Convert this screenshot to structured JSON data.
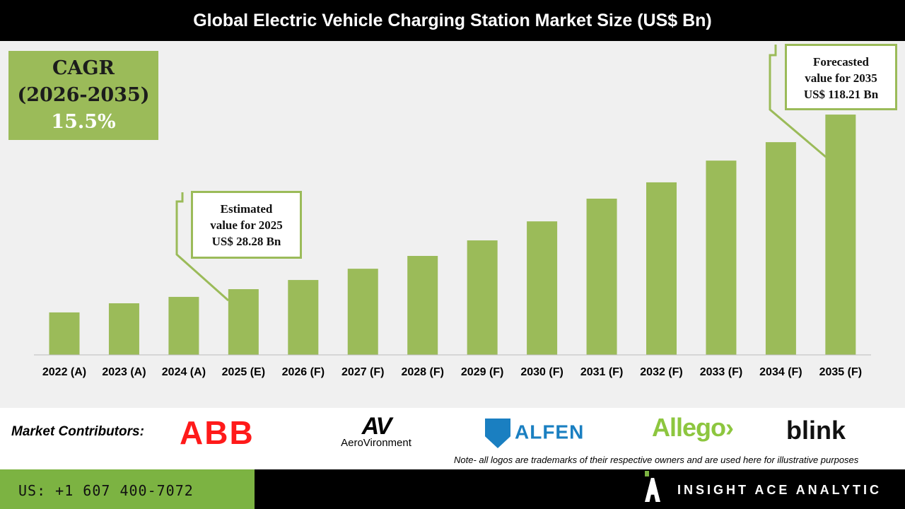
{
  "title": "Global Electric Vehicle Charging Station Market Size (US$ Bn)",
  "cagr": {
    "label": "CAGR",
    "period": "(2026-2035)",
    "value": "15.5%"
  },
  "callouts": {
    "estimated": {
      "line1": "Estimated",
      "line2": "value for 2025",
      "line3": "US$ 28.28 Bn"
    },
    "forecast": {
      "line1": "Forecasted",
      "line2": "value for 2035",
      "line3": "US$ 118.21 Bn"
    }
  },
  "chart_data": {
    "type": "bar",
    "title": "Global Electric Vehicle Charging Station Market Size (US$ Bn)",
    "categories": [
      "2022 (A)",
      "2023 (A)",
      "2024 (A)",
      "2025 (E)",
      "2026 (F)",
      "2027 (F)",
      "2028 (F)",
      "2029 (F)",
      "2030 (F)",
      "2031 (F)",
      "2032 (F)",
      "2033 (F)",
      "2034 (F)",
      "2035 (F)"
    ],
    "values": [
      16.3,
      21.0,
      24.3,
      28.28,
      33.0,
      38.8,
      45.4,
      53.4,
      63.2,
      74.9,
      83.3,
      94.5,
      104.0,
      118.21
    ],
    "xlabel": "",
    "ylabel": "",
    "grid": false,
    "color": "#9bbb59"
  },
  "footer": {
    "contributors_label": "Market Contributors:",
    "logos": [
      "ABB",
      "AeroVironment",
      "ALFEN",
      "Allego",
      "blink"
    ],
    "note": "Note- all logos are trademarks of their respective owners and are used here for illustrative purposes",
    "phone": "US: +1 607 400-7072",
    "brand": "INSIGHT ACE ANALYTIC"
  }
}
